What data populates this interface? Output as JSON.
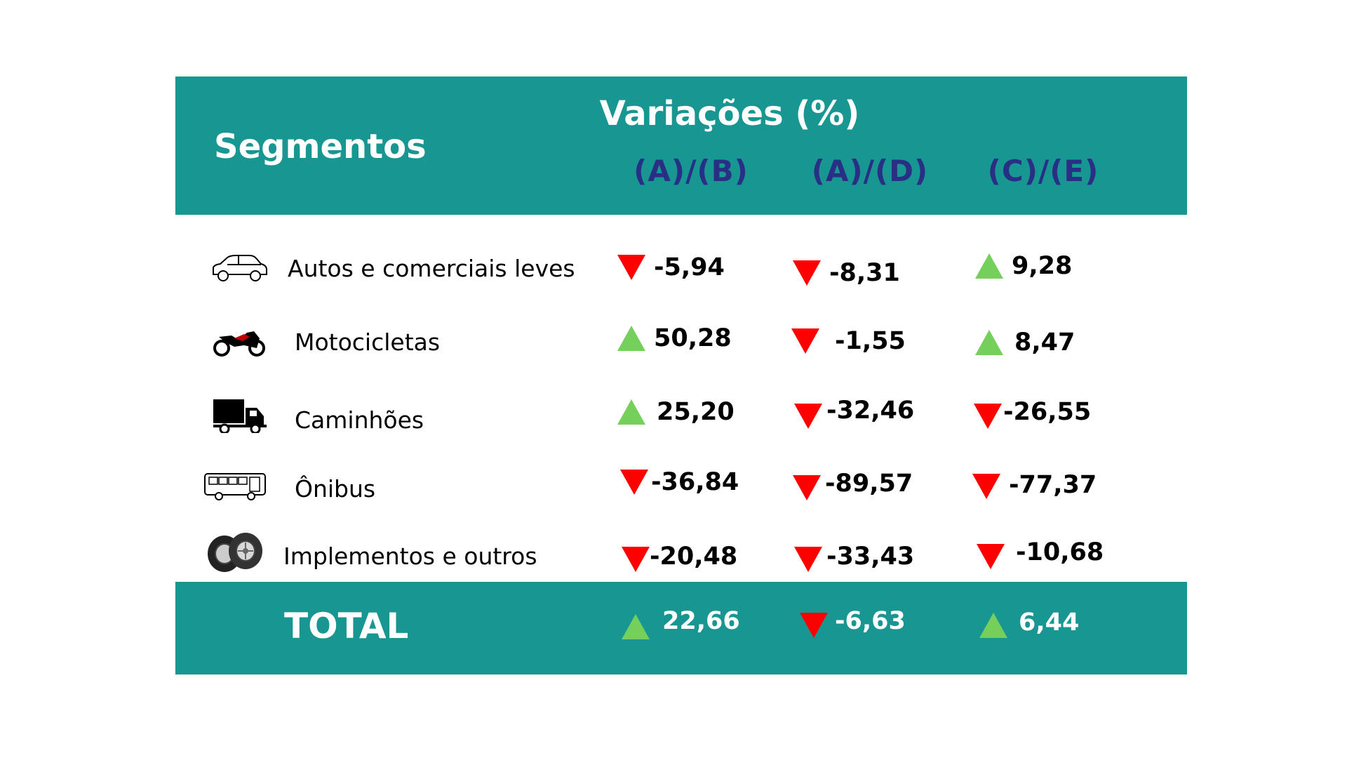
{
  "header": {
    "segments_title": "Segmentos",
    "variations_title": "Variações (%)",
    "columns": [
      "(A)/(B)",
      "(A)/(D)",
      "(C)/(E)"
    ]
  },
  "rows": [
    {
      "label": "Autos e comerciais leves",
      "icon": "car-icon",
      "values": [
        {
          "v": "-5,94",
          "dir": "down"
        },
        {
          "v": "-8,31",
          "dir": "down"
        },
        {
          "v": "9,28",
          "dir": "up"
        }
      ]
    },
    {
      "label": "Motocicletas",
      "icon": "motorcycle-icon",
      "values": [
        {
          "v": "50,28",
          "dir": "up"
        },
        {
          "v": "-1,55",
          "dir": "down"
        },
        {
          "v": "8,47",
          "dir": "up"
        }
      ]
    },
    {
      "label": "Caminhões",
      "icon": "truck-icon",
      "values": [
        {
          "v": "25,20",
          "dir": "up"
        },
        {
          "v": "-32,46",
          "dir": "down"
        },
        {
          "v": "-26,55",
          "dir": "down"
        }
      ]
    },
    {
      "label": "Ônibus",
      "icon": "bus-icon",
      "values": [
        {
          "v": "-36,84",
          "dir": "down"
        },
        {
          "v": "-89,57",
          "dir": "down"
        },
        {
          "v": "-77,37",
          "dir": "down"
        }
      ]
    },
    {
      "label": "Implementos e outros",
      "icon": "tires-icon",
      "values": [
        {
          "v": "-20,48",
          "dir": "down"
        },
        {
          "v": "-33,43",
          "dir": "down"
        },
        {
          "v": "-10,68",
          "dir": "down"
        }
      ]
    }
  ],
  "total": {
    "label": "TOTAL",
    "values": [
      {
        "v": "22,66",
        "dir": "up"
      },
      {
        "v": "-6,63",
        "dir": "down"
      },
      {
        "v": "6,44",
        "dir": "up"
      }
    ]
  },
  "colors": {
    "header_bg": "#189692",
    "up": "#74d05a",
    "down": "#ff0000",
    "colhead": "#2a2f86"
  }
}
